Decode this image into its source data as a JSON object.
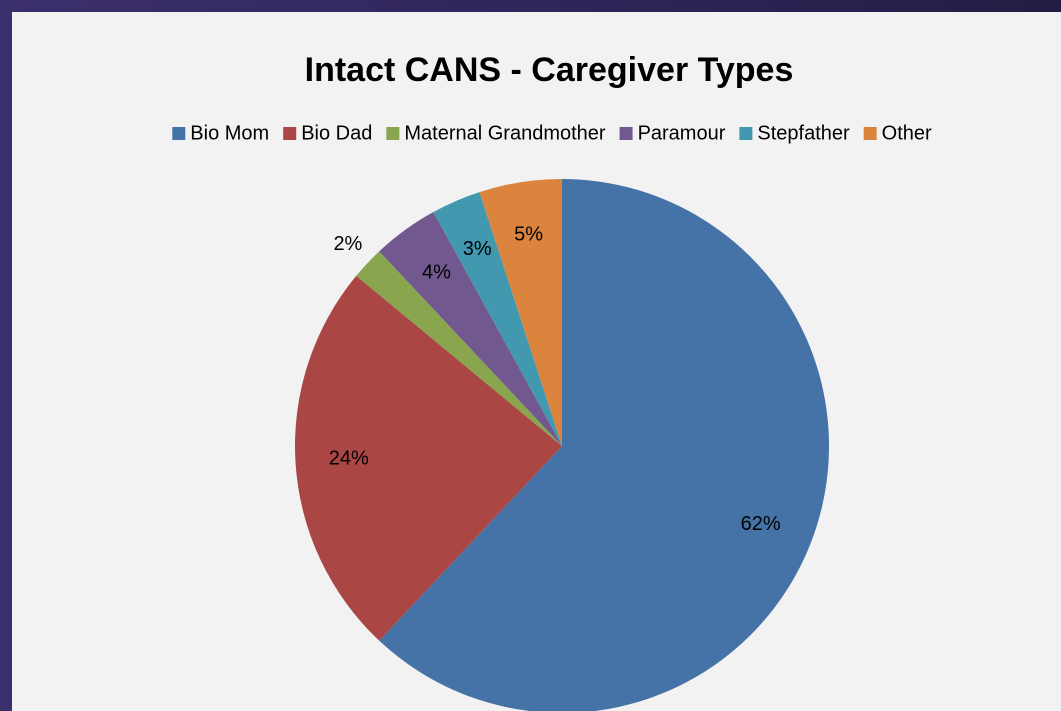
{
  "chart_data": {
    "type": "pie",
    "title": "Intact CANS - Caregiver Types",
    "categories": [
      "Bio Mom",
      "Bio Dad",
      "Maternal Grandmother",
      "Paramour",
      "Stepfather",
      "Other"
    ],
    "values": [
      62,
      24,
      2,
      4,
      3,
      5
    ],
    "value_labels": [
      "62%",
      "24%",
      "2%",
      "4%",
      "3%",
      "5%"
    ],
    "colors": [
      "#4572a7",
      "#aa4643",
      "#89a54e",
      "#71588f",
      "#4198af",
      "#db843d"
    ],
    "legend": "top"
  }
}
